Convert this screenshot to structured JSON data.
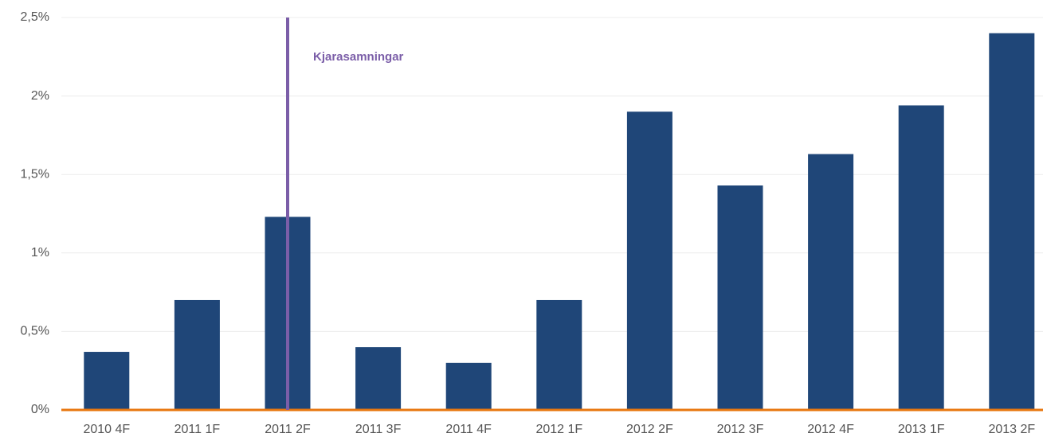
{
  "chart_data": {
    "type": "bar",
    "categories": [
      "2010 4F",
      "2011 1F",
      "2011 2F",
      "2011 3F",
      "2011 4F",
      "2012 1F",
      "2012 2F",
      "2012 3F",
      "2012 4F",
      "2013 1F",
      "2013 2F"
    ],
    "values": [
      0.37,
      0.7,
      1.23,
      0.4,
      0.3,
      0.7,
      1.9,
      1.43,
      1.63,
      1.94,
      2.4
    ],
    "color": "#1f4678",
    "ylim": [
      0,
      2.5
    ],
    "yticks": [
      {
        "value": 0,
        "label": "0%"
      },
      {
        "value": 0.5,
        "label": "0,5%"
      },
      {
        "value": 1,
        "label": "1%"
      },
      {
        "value": 1.5,
        "label": "1,5%"
      },
      {
        "value": 2,
        "label": "2%"
      },
      {
        "value": 2.5,
        "label": "2,5%"
      }
    ],
    "grid": true,
    "annotation": {
      "text": "Kjarasamningar",
      "x": "2011 2F",
      "color": "#7b5ea8"
    }
  }
}
